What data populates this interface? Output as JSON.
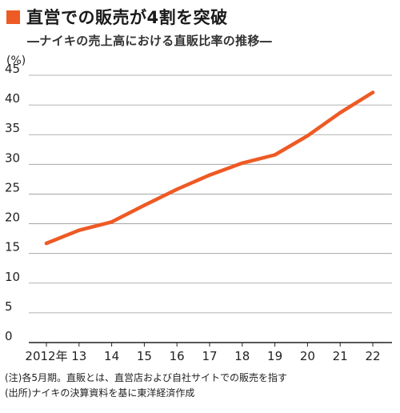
{
  "header": {
    "title": "直営での販売が4割を突破",
    "subtitle": "―ナイキの売上高における直販比率の推移―",
    "accent_color": "#ee5a24"
  },
  "chart_data": {
    "type": "line",
    "title": "直営での販売が4割を突破",
    "subtitle": "ナイキの売上高における直販比率の推移",
    "unit": "(%)",
    "categories": [
      "2012年",
      "13",
      "14",
      "15",
      "16",
      "17",
      "18",
      "19",
      "20",
      "21",
      "22"
    ],
    "series": [
      {
        "values": [
          16.7,
          18.9,
          20.3,
          23.1,
          25.8,
          28.2,
          30.2,
          31.6,
          34.8,
          38.7,
          42.1
        ]
      }
    ],
    "ylim": [
      0,
      45
    ],
    "yticks": [
      0,
      5,
      10,
      15,
      20,
      25,
      30,
      35,
      40,
      45
    ],
    "line_color": "#ee5a24",
    "grid": true
  },
  "notes": {
    "note1": "(注)各5月期。直販とは、直営店および自社サイトでの販売を指す",
    "note2": "(出所)ナイキの決算資料を基に東洋経済作成"
  }
}
